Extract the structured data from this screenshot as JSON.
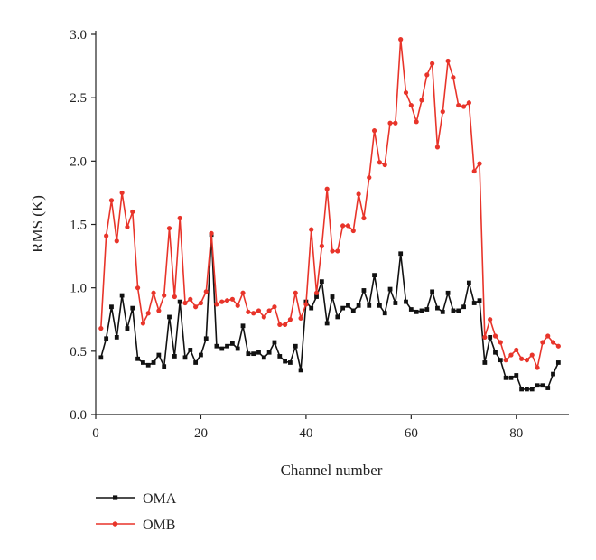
{
  "chart_data": {
    "type": "line",
    "xlabel": "Channel number",
    "ylabel": "RMS (K)",
    "xlim": [
      0,
      90
    ],
    "ylim": [
      0,
      3.0
    ],
    "x_ticks": [
      0,
      20,
      40,
      60,
      80
    ],
    "y_ticks": [
      0.0,
      0.5,
      1.0,
      1.5,
      2.0,
      2.5,
      3.0
    ],
    "x_tick_labels": [
      "0",
      "20",
      "40",
      "60",
      "80"
    ],
    "y_tick_labels": [
      "0.0",
      "0.5",
      "1.0",
      "1.5",
      "2.0",
      "2.5",
      "3.0"
    ],
    "grid": false,
    "legend_position": "bottom-left",
    "x": [
      1,
      2,
      3,
      4,
      5,
      6,
      7,
      8,
      9,
      10,
      11,
      12,
      13,
      14,
      15,
      16,
      17,
      18,
      19,
      20,
      21,
      22,
      23,
      24,
      25,
      26,
      27,
      28,
      29,
      30,
      31,
      32,
      33,
      34,
      35,
      36,
      37,
      38,
      39,
      40,
      41,
      42,
      43,
      44,
      45,
      46,
      47,
      48,
      49,
      50,
      51,
      52,
      53,
      54,
      55,
      56,
      57,
      58,
      59,
      60,
      61,
      62,
      63,
      64,
      65,
      66,
      67,
      68,
      69,
      70,
      71,
      72,
      73,
      74,
      75,
      76,
      77,
      78,
      79,
      80,
      81,
      82,
      83,
      84,
      85,
      86,
      87,
      88
    ],
    "series": [
      {
        "name": "OMA",
        "color": "#111111",
        "marker": "square",
        "values": [
          0.45,
          0.6,
          0.85,
          0.61,
          0.94,
          0.68,
          0.84,
          0.44,
          0.41,
          0.39,
          0.41,
          0.47,
          0.38,
          0.77,
          0.46,
          0.89,
          0.45,
          0.51,
          0.41,
          0.47,
          0.6,
          1.42,
          0.54,
          0.52,
          0.54,
          0.56,
          0.52,
          0.7,
          0.48,
          0.48,
          0.49,
          0.45,
          0.49,
          0.57,
          0.46,
          0.42,
          0.41,
          0.54,
          0.35,
          0.89,
          0.84,
          0.93,
          1.05,
          0.72,
          0.93,
          0.77,
          0.84,
          0.86,
          0.82,
          0.86,
          0.98,
          0.86,
          1.1,
          0.86,
          0.8,
          0.99,
          0.88,
          1.27,
          0.89,
          0.83,
          0.81,
          0.82,
          0.83,
          0.97,
          0.84,
          0.81,
          0.96,
          0.82,
          0.82,
          0.85,
          1.04,
          0.88,
          0.9,
          0.41,
          0.61,
          0.49,
          0.43,
          0.29,
          0.29,
          0.31,
          0.2,
          0.2,
          0.2,
          0.23,
          0.23,
          0.21,
          0.32,
          0.41
        ]
      },
      {
        "name": "OMB",
        "color": "#e8342a",
        "marker": "circle",
        "values": [
          0.68,
          1.41,
          1.69,
          1.37,
          1.75,
          1.48,
          1.6,
          1.0,
          0.72,
          0.8,
          0.96,
          0.82,
          0.94,
          1.47,
          0.93,
          1.55,
          0.88,
          0.91,
          0.85,
          0.88,
          0.97,
          1.43,
          0.87,
          0.89,
          0.9,
          0.91,
          0.86,
          0.96,
          0.81,
          0.8,
          0.82,
          0.77,
          0.82,
          0.85,
          0.71,
          0.71,
          0.75,
          0.96,
          0.76,
          0.87,
          1.46,
          0.96,
          1.33,
          1.78,
          1.29,
          1.29,
          1.49,
          1.49,
          1.45,
          1.74,
          1.55,
          1.87,
          2.24,
          1.99,
          1.97,
          2.3,
          2.3,
          2.96,
          2.54,
          2.44,
          2.31,
          2.48,
          2.68,
          2.77,
          2.11,
          2.39,
          2.79,
          2.66,
          2.44,
          2.43,
          2.46,
          1.92,
          1.98,
          0.61,
          0.75,
          0.62,
          0.57,
          0.43,
          0.47,
          0.51,
          0.44,
          0.43,
          0.47,
          0.37,
          0.57,
          0.62,
          0.57,
          0.54
        ]
      }
    ]
  }
}
